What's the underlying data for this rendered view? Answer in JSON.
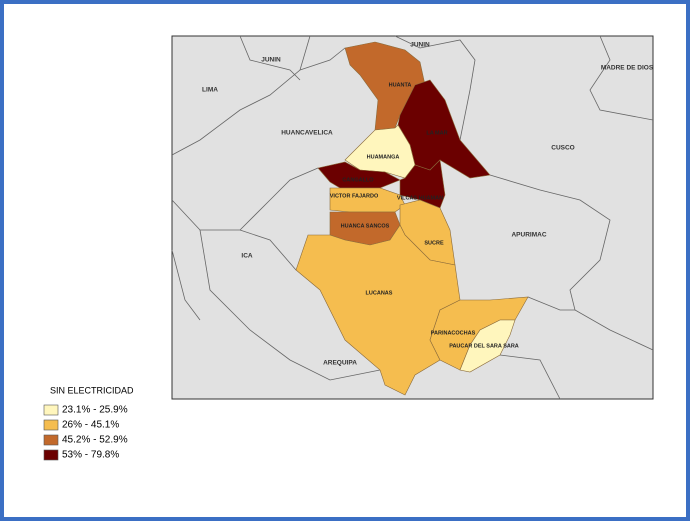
{
  "map": {
    "neighbors": [
      "JUNIN",
      "JUNIN",
      "MADRE DE DIOS",
      "LIMA",
      "HUANCAVELICA",
      "CUSCO",
      "APURIMAC",
      "ICA",
      "AREQUIPA"
    ],
    "provinces": [
      {
        "name": "HUANTA",
        "color": "#c2692b"
      },
      {
        "name": "LA MAR",
        "color": "#6b0000"
      },
      {
        "name": "HUAMANGA",
        "color": "#fff6bd"
      },
      {
        "name": "CANGALLO",
        "color": "#6b0000"
      },
      {
        "name": "VILCAS HUAMAN",
        "color": "#6b0000"
      },
      {
        "name": "VICTOR FAJARDO",
        "color": "#f5bd4f"
      },
      {
        "name": "HUANCA SANCOS",
        "color": "#c2692b"
      },
      {
        "name": "SUCRE",
        "color": "#f5bd4f"
      },
      {
        "name": "LUCANAS",
        "color": "#f5bd4f"
      },
      {
        "name": "PARINACOCHAS",
        "color": "#f5bd4f"
      },
      {
        "name": "PAUCAR DEL SARA SARA",
        "color": "#fff6bd"
      }
    ],
    "legend": {
      "title": "SIN ELECTRICIDAD",
      "items": [
        {
          "label": "23.1% - 25.9%",
          "color": "#fff6bd"
        },
        {
          "label": "26% - 45.1%",
          "color": "#f5bd4f"
        },
        {
          "label": "45.2% - 52.9%",
          "color": "#c2692b"
        },
        {
          "label": "53% - 79.8%",
          "color": "#6b0000"
        }
      ]
    }
  }
}
